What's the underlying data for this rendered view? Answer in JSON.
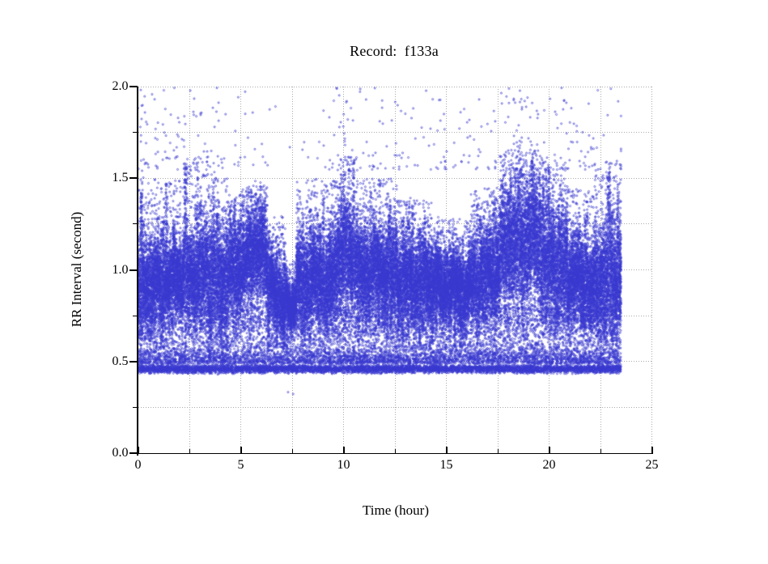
{
  "figure": {
    "background_color": "#ffffff",
    "text_color": "#000000",
    "grid_color": "#ababab",
    "grid_style": "dotted"
  },
  "chart_data": {
    "type": "scatter",
    "title": "Record:  f133a",
    "xlabel": "Time (hour)",
    "ylabel": "RR Interval (second)",
    "xlim": [
      0,
      25
    ],
    "ylim": [
      0.0,
      2.0
    ],
    "x_tick_labels": [
      "0",
      "5",
      "10",
      "15",
      "20",
      "25"
    ],
    "x_major_ticks": [
      0,
      5,
      10,
      15,
      20,
      25
    ],
    "x_minor_step": 2.5,
    "y_tick_labels": [
      "0.0",
      "0.5",
      "1.0",
      "1.5",
      "2.0"
    ],
    "y_major_ticks": [
      0.0,
      0.5,
      1.0,
      1.5,
      2.0
    ],
    "y_minor_step": 0.25,
    "grid": "dotted gridlines every 2.5 h (vertical) and 0.25 s (horizontal); top and right frame are dotted gridlines",
    "legend": "none",
    "point_color": "#3a3ad0",
    "point_style": "small open circles, radius ~1px",
    "recording_duration_hours": 23.5,
    "description": "24-hour RR-interval tachogram for record f133a: a dense main band of normal beats whose center drifts between ~0.82 and ~1.15 s, a tight dense artifact band at ~0.44-0.50 s spanning the whole recording, intermediate scatter 0.5-0.8 s, and sparse long-RR outliers up to 2.0 s.",
    "random_seed": 42,
    "segment_fields": [
      "t_start",
      "t_end",
      "center_start",
      "center_end",
      "spread",
      "upper_max"
    ],
    "main_band_segments": [
      [
        0.0,
        0.7,
        0.9,
        0.92,
        0.13,
        1.55
      ],
      [
        0.7,
        2.2,
        0.93,
        0.95,
        0.11,
        1.5
      ],
      [
        2.2,
        3.4,
        0.96,
        0.98,
        0.13,
        1.62
      ],
      [
        3.4,
        4.4,
        0.95,
        0.95,
        0.17,
        1.5
      ],
      [
        4.4,
        5.3,
        1.0,
        1.02,
        0.13,
        1.45
      ],
      [
        5.3,
        6.3,
        1.1,
        1.08,
        0.14,
        1.48
      ],
      [
        6.3,
        7.2,
        0.92,
        0.84,
        0.1,
        1.3
      ],
      [
        7.2,
        7.7,
        0.82,
        0.82,
        0.06,
        1.05
      ],
      [
        7.7,
        9.7,
        0.92,
        0.95,
        0.13,
        1.5
      ],
      [
        9.7,
        10.7,
        1.08,
        1.06,
        0.15,
        1.62
      ],
      [
        10.7,
        12.6,
        1.0,
        0.98,
        0.13,
        1.5
      ],
      [
        12.6,
        14.3,
        0.95,
        0.93,
        0.12,
        1.38
      ],
      [
        14.3,
        16.2,
        0.92,
        0.92,
        0.1,
        1.28
      ],
      [
        16.2,
        17.6,
        0.95,
        1.0,
        0.12,
        1.45
      ],
      [
        17.6,
        19.6,
        1.12,
        1.15,
        0.18,
        1.66
      ],
      [
        19.6,
        20.9,
        1.05,
        1.0,
        0.16,
        1.6
      ],
      [
        20.9,
        22.2,
        0.95,
        0.93,
        0.12,
        1.45
      ],
      [
        22.2,
        23.5,
        0.95,
        0.97,
        0.16,
        1.6
      ]
    ],
    "main_points_per_hour": 2100,
    "bottom_band": {
      "t_start": 0,
      "t_end": 23.5,
      "y_center": 0.462,
      "y_sigma": 0.011,
      "fade_top": 0.7,
      "count": 9000
    },
    "low_scatter": {
      "t_start": 0,
      "t_end": 23.5,
      "y_min": 0.5,
      "y_max": 0.8,
      "count": 4800
    },
    "upper_outliers": {
      "y_min": 1.55,
      "y_max": 2.0,
      "count": 380,
      "hourly_weights": [
        3,
        2,
        1.6,
        2.2,
        1.4,
        1.2,
        1.0,
        0.6,
        1.2,
        1.8,
        2.4,
        2.0,
        1.6,
        1.6,
        1.2,
        0.8,
        1.2,
        2.0,
        2.6,
        2.4,
        2.2,
        1.6,
        1.2,
        2.0
      ]
    },
    "isolated_low_points": [
      [
        7.3,
        0.335
      ],
      [
        7.55,
        0.325
      ]
    ]
  }
}
